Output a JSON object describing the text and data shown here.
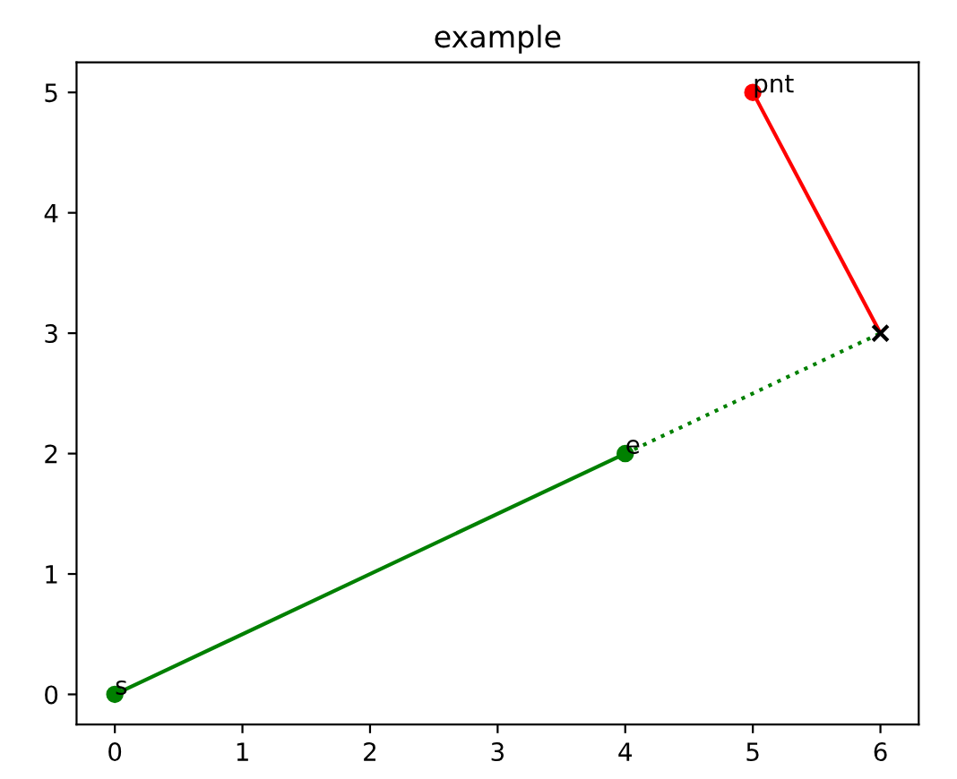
{
  "chart_data": {
    "type": "line",
    "title": "example",
    "xlim": [
      -0.3,
      6.3
    ],
    "ylim": [
      -0.25,
      5.25
    ],
    "xticks": [
      0,
      1,
      2,
      3,
      4,
      5,
      6
    ],
    "yticks": [
      0,
      1,
      2,
      3,
      4,
      5
    ],
    "grid": false,
    "legend": false,
    "series": [
      {
        "x": [
          0,
          4
        ],
        "values": [
          0,
          2
        ],
        "color": "#008000",
        "line_style": "solid"
      },
      {
        "x": [
          4,
          6
        ],
        "values": [
          2,
          3
        ],
        "color": "#008000",
        "line_style": "dotted"
      },
      {
        "x": [
          5,
          6
        ],
        "values": [
          5,
          3
        ],
        "color": "#ff0000",
        "line_style": "solid"
      },
      {
        "type": "scatter",
        "x": [
          0,
          4
        ],
        "values": [
          0,
          2
        ],
        "color": "#008000",
        "marker": "circle"
      },
      {
        "type": "scatter",
        "x": [
          5
        ],
        "values": [
          5
        ],
        "color": "#ff0000",
        "marker": "circle"
      },
      {
        "type": "scatter",
        "x": [
          6
        ],
        "values": [
          3
        ],
        "color": "#000000",
        "marker": "cross"
      }
    ],
    "annotations": [
      {
        "text": "s",
        "x": 0,
        "y": 0
      },
      {
        "text": "e",
        "x": 4,
        "y": 2
      },
      {
        "text": "pnt",
        "x": 5,
        "y": 5
      }
    ]
  }
}
